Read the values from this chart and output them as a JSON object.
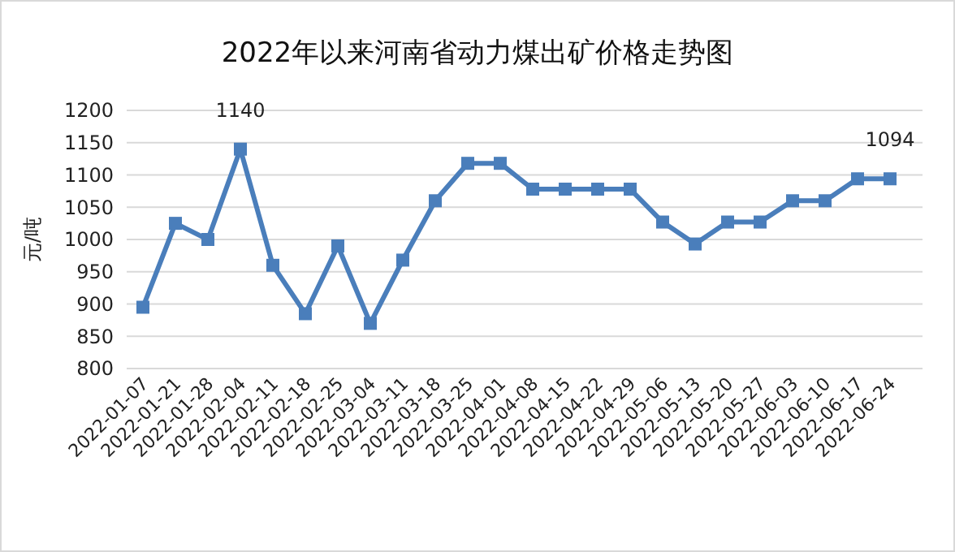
{
  "chart_data": {
    "type": "line",
    "title": "2022年以来河南省动力煤出矿价格走势图",
    "ylabel": "元/吨",
    "categories": [
      "2022-01-07",
      "2022-01-21",
      "2022-01-28",
      "2022-02-04",
      "2022-02-11",
      "2022-02-18",
      "2022-02-25",
      "2022-03-04",
      "2022-03-11",
      "2022-03-18",
      "2022-03-25",
      "2022-04-01",
      "2022-04-08",
      "2022-04-15",
      "2022-04-22",
      "2022-04-29",
      "2022-05-06",
      "2022-05-13",
      "2022-05-20",
      "2022-05-27",
      "2022-06-03",
      "2022-06-10",
      "2022-06-17",
      "2022-06-24"
    ],
    "series": [
      {
        "color": "#4a7ebb",
        "values": [
          895,
          1025,
          1000,
          1140,
          960,
          885,
          990,
          870,
          968,
          1060,
          1118,
          1118,
          1078,
          1078,
          1078,
          1078,
          1027,
          993,
          1027,
          1027,
          1060,
          1060,
          1094,
          1094
        ],
        "value_labels": [
          null,
          null,
          null,
          "1140",
          null,
          null,
          null,
          null,
          null,
          null,
          null,
          null,
          null,
          null,
          null,
          null,
          null,
          null,
          null,
          null,
          null,
          null,
          null,
          "1094"
        ]
      }
    ],
    "ylim": [
      800,
      1200
    ],
    "yticks": [
      800,
      850,
      900,
      950,
      1000,
      1050,
      1100,
      1150,
      1200
    ],
    "grid": "y",
    "marker": "square",
    "line_style": "solid"
  }
}
